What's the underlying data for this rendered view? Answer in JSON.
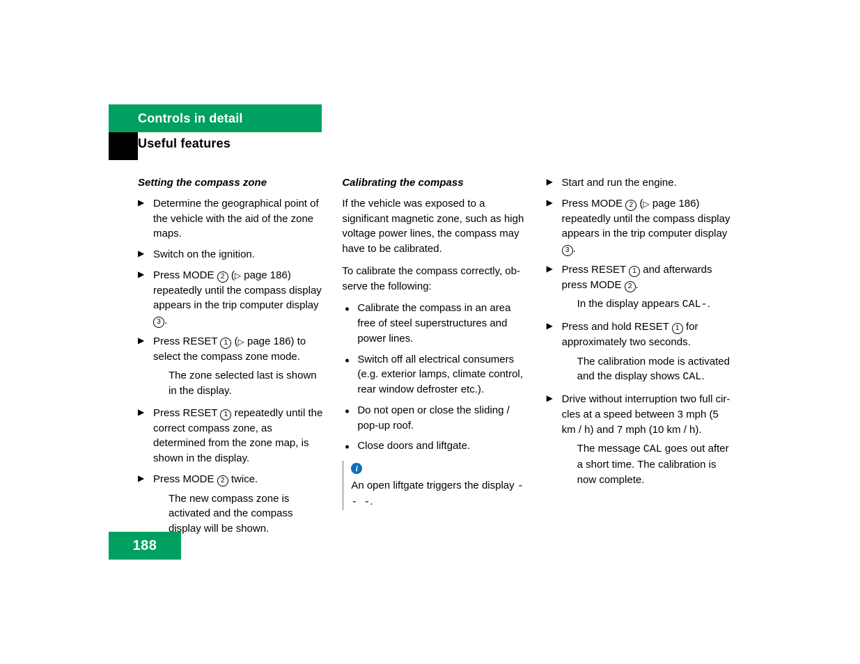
{
  "header": {
    "chapter": "Controls in detail",
    "section": "Useful features",
    "page_number": "188",
    "colors": {
      "accent_green": "#00a160",
      "info_blue": "#0b6fb8",
      "note_bar": "#c8c8c8",
      "text": "#000000",
      "background": "#ffffff"
    }
  },
  "col1": {
    "title": "Setting the compass zone",
    "step1": "Determine the geographical point of the vehicle with the aid of the zone maps.",
    "step2": "Switch on the ignition.",
    "step3_a": "Press MODE ",
    "step3_b": " (",
    "step3_c": " page 186) repeat­edly until the compass display appears in the trip computer display ",
    "step3_d": ".",
    "step4_a": "Press RESET ",
    "step4_b": " (",
    "step4_c": " page 186) to select the compass zone mode.",
    "step4_result": "The zone selected last is shown in the display.",
    "step5_a": "Press RESET ",
    "step5_b": " repeatedly until the correct compass zone, as determined from the zone map, is shown in the dis­play.",
    "step6_a": "Press MODE ",
    "step6_b": " twice.",
    "step6_result": "The new compass zone is activated and the compass display will be shown."
  },
  "col2": {
    "title": "Calibrating the compass",
    "intro": "If the vehicle was exposed to a significant magnetic zone, such as high voltage power lines, the compass may have to be calibrat­ed.",
    "intro2": "To calibrate the compass correctly, ob­serve the following:",
    "b1": "Calibrate the compass in an area free of steel superstructures and power lines.",
    "b2": "Switch off all electrical consumers (e.g. exterior lamps, climate control, rear window defroster etc.).",
    "b3": "Do not open or close the sliding / pop‑up roof.",
    "b4": "Close doors and liftgate.",
    "note_a": "An open liftgate triggers the display ",
    "note_mono": "- - -",
    "note_b": "."
  },
  "col3": {
    "step1": "Start and run the engine.",
    "step2_a": "Press MODE ",
    "step2_b": " (",
    "step2_c": " page 186) repeat­edly until the compass display appears in the trip computer display ",
    "step2_d": ".",
    "step3_a": "Press RESET ",
    "step3_b": " and afterwards press MODE ",
    "step3_c": ".",
    "step3_res_a": "In the display appears ",
    "step3_res_mono": "CAL-",
    "step3_res_b": ".",
    "step4_a": "Press and hold RESET ",
    "step4_b": " for approxi­mately two seconds.",
    "step4_res_a": "The calibration mode is activated and the display shows ",
    "step4_res_mono": "CAL",
    "step4_res_b": ".",
    "step5": "Drive without interruption two full cir­cles at a speed between 3 mph (5 km / h) and 7 mph (10 km / h).",
    "step5_res_a": "The message ",
    "step5_res_mono": "CAL",
    "step5_res_b": " goes out after a short time. The calibration is now complete."
  },
  "glyphs": {
    "c1": "1",
    "c2": "2",
    "c3": "3",
    "tri": "▷",
    "info": "i"
  }
}
